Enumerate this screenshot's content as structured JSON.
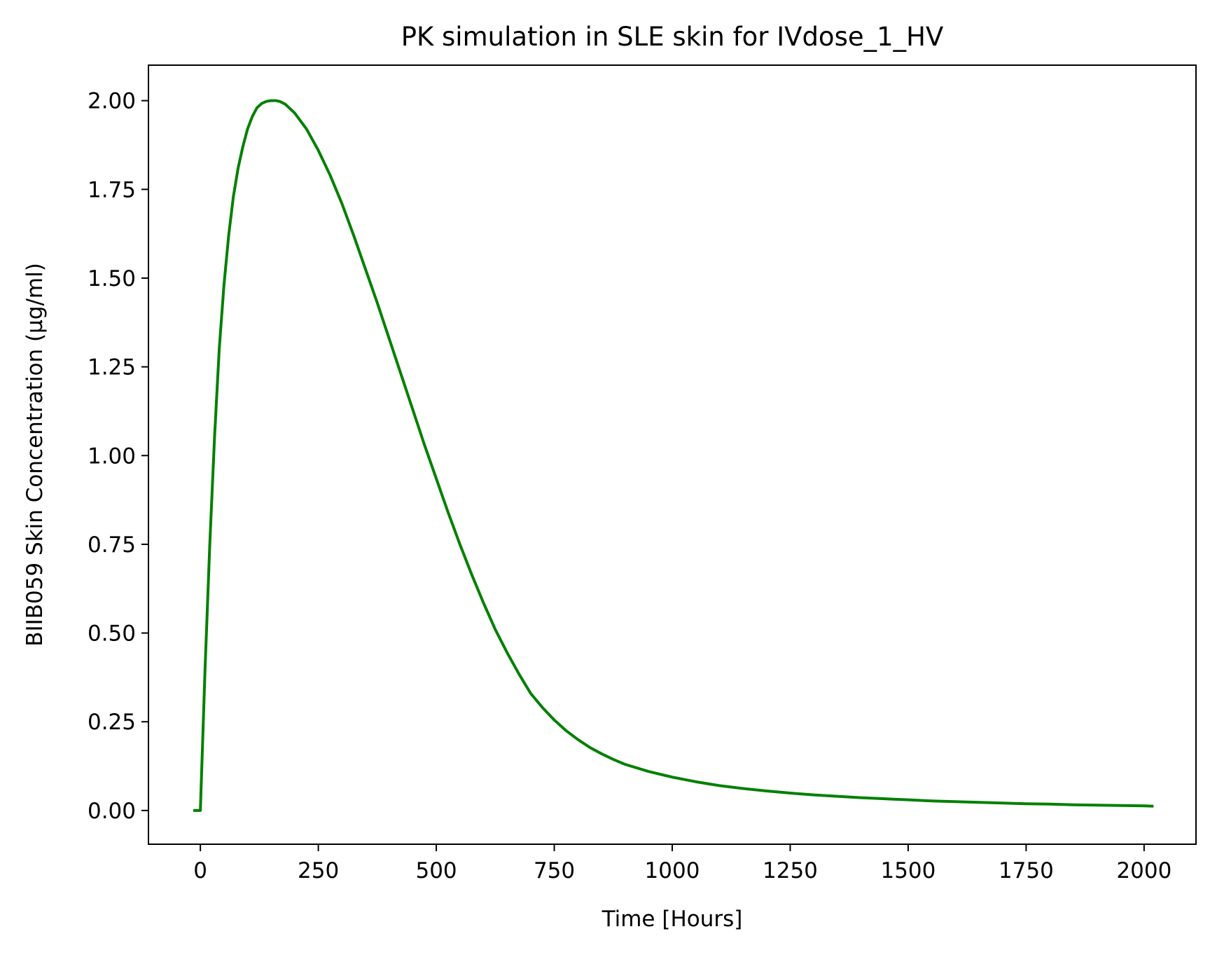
{
  "chart_data": {
    "type": "line",
    "title": "PK simulation in SLE skin for IVdose_1_HV",
    "xlabel": "Time [Hours]",
    "ylabel": "BIIB059 Skin Concentration (µg/ml)",
    "xlim": [
      -110,
      2110
    ],
    "ylim": [
      -0.095,
      2.1
    ],
    "xticks": [
      0,
      250,
      500,
      750,
      1000,
      1250,
      1500,
      1750,
      2000
    ],
    "xtick_labels": [
      "0",
      "250",
      "500",
      "750",
      "1000",
      "1250",
      "1500",
      "1750",
      "2000"
    ],
    "yticks": [
      0,
      0.25,
      0.5,
      0.75,
      1.0,
      1.25,
      1.5,
      1.75,
      2.0
    ],
    "ytick_labels": [
      "0.00",
      "0.25",
      "0.50",
      "0.75",
      "1.00",
      "1.25",
      "1.50",
      "1.75",
      "2.00"
    ],
    "grid": false,
    "legend": "none",
    "series": [
      {
        "color": "#008000",
        "x": [
          -15,
          -1,
          0,
          5,
          10,
          20,
          30,
          40,
          50,
          60,
          70,
          80,
          90,
          100,
          110,
          120,
          130,
          140,
          150,
          160,
          168,
          180,
          200,
          225,
          250,
          275,
          300,
          325,
          350,
          375,
          400,
          425,
          450,
          475,
          500,
          525,
          550,
          575,
          600,
          625,
          650,
          675,
          700,
          725,
          750,
          775,
          800,
          825,
          850,
          875,
          900,
          950,
          1000,
          1050,
          1100,
          1150,
          1200,
          1250,
          1300,
          1350,
          1400,
          1450,
          1500,
          1550,
          1600,
          1650,
          1700,
          1750,
          1800,
          1850,
          1900,
          1950,
          2000,
          2020
        ],
        "y": [
          0.0,
          0.0,
          0.0,
          0.2,
          0.4,
          0.75,
          1.05,
          1.3,
          1.48,
          1.62,
          1.73,
          1.81,
          1.87,
          1.92,
          1.955,
          1.98,
          1.992,
          1.998,
          2.0,
          2.0,
          1.998,
          1.99,
          1.965,
          1.92,
          1.86,
          1.79,
          1.71,
          1.62,
          1.525,
          1.43,
          1.33,
          1.23,
          1.13,
          1.03,
          0.935,
          0.84,
          0.75,
          0.665,
          0.585,
          0.51,
          0.445,
          0.385,
          0.33,
          0.29,
          0.255,
          0.225,
          0.2,
          0.178,
          0.16,
          0.144,
          0.13,
          0.11,
          0.094,
          0.081,
          0.07,
          0.062,
          0.055,
          0.049,
          0.044,
          0.04,
          0.036,
          0.033,
          0.03,
          0.027,
          0.025,
          0.023,
          0.021,
          0.019,
          0.018,
          0.016,
          0.015,
          0.014,
          0.013,
          0.012
        ]
      }
    ]
  }
}
